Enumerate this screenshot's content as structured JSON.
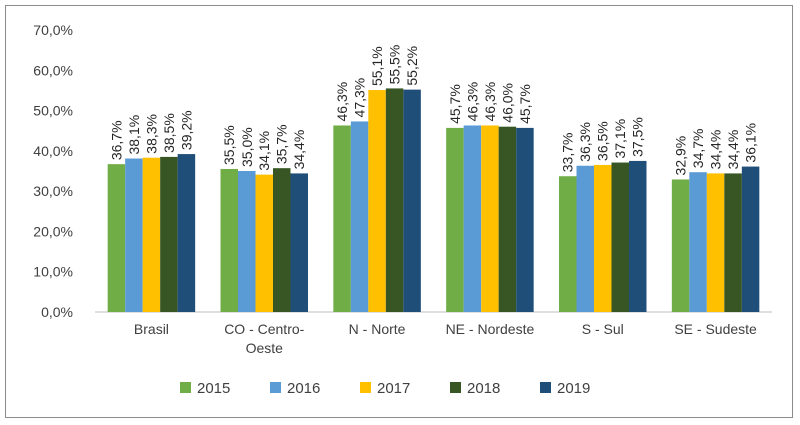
{
  "chart_data": {
    "type": "bar",
    "categories": [
      "Brasil",
      "CO - Centro-Oeste",
      "N - Norte",
      "NE - Nordeste",
      "S - Sul",
      "SE - Sudeste"
    ],
    "category_lines": [
      [
        "Brasil"
      ],
      [
        "CO - Centro-",
        "Oeste"
      ],
      [
        "N - Norte"
      ],
      [
        "NE - Nordeste"
      ],
      [
        "S - Sul"
      ],
      [
        "SE - Sudeste"
      ]
    ],
    "series": [
      {
        "name": "2015",
        "color": "#70ad47",
        "values": [
          36.7,
          35.5,
          46.3,
          45.7,
          33.7,
          32.9
        ],
        "labels": [
          "36,7%",
          "35,5%",
          "46,3%",
          "45,7%",
          "33,7%",
          "32,9%"
        ]
      },
      {
        "name": "2016",
        "color": "#5b9bd5",
        "values": [
          38.1,
          35.0,
          47.3,
          46.3,
          36.3,
          34.7
        ],
        "labels": [
          "38,1%",
          "35,0%",
          "47,3%",
          "46,3%",
          "36,3%",
          "34,7%"
        ]
      },
      {
        "name": "2017",
        "color": "#ffc000",
        "values": [
          38.3,
          34.1,
          55.1,
          46.3,
          36.5,
          34.4
        ],
        "labels": [
          "38,3%",
          "34,1%",
          "55,1%",
          "46,3%",
          "36,5%",
          "34,4%"
        ]
      },
      {
        "name": "2018",
        "color": "#375623",
        "values": [
          38.5,
          35.7,
          55.5,
          46.0,
          37.1,
          34.4
        ],
        "labels": [
          "38,5%",
          "35,7%",
          "55,5%",
          "46,0%",
          "37,1%",
          "34,4%"
        ]
      },
      {
        "name": "2019",
        "color": "#1f4e79",
        "values": [
          39.2,
          34.4,
          55.2,
          45.7,
          37.5,
          36.1
        ],
        "labels": [
          "39,2%",
          "34,4%",
          "55,2%",
          "45,7%",
          "37,5%",
          "36,1%"
        ]
      }
    ],
    "ylim": [
      0,
      70
    ],
    "y_ticks": [
      0,
      10,
      20,
      30,
      40,
      50,
      60,
      70
    ],
    "y_tick_labels": [
      "0,0%",
      "10,0%",
      "20,0%",
      "30,0%",
      "40,0%",
      "50,0%",
      "60,0%",
      "70,0%"
    ],
    "grid": false,
    "legend_position": "bottom",
    "title": "",
    "xlabel": "",
    "ylabel": ""
  }
}
